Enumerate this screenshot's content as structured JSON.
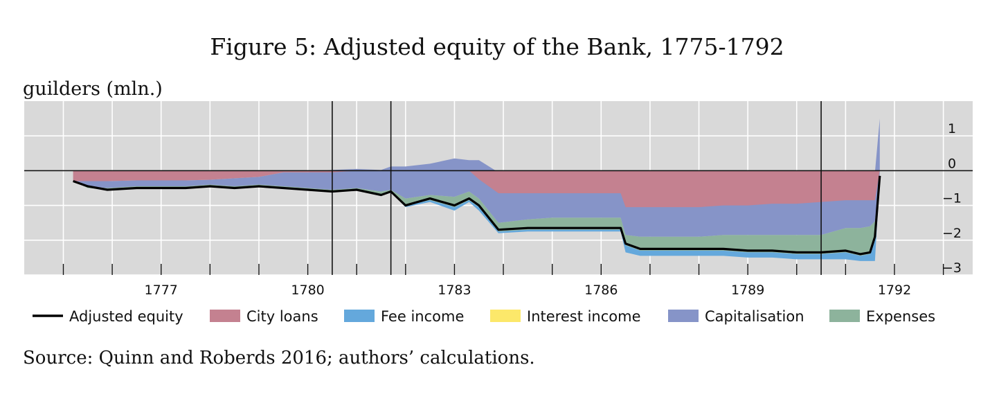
{
  "figure": {
    "title": "Figure 5: Adjusted equity of the Bank, 1775-1792",
    "unit_label": "guilders (mln.)",
    "source": "Source: Quinn and Roberds 2016; authors’ calculations."
  },
  "chart_data": {
    "type": "area",
    "title": "Figure 5: Adjusted equity of the Bank, 1775-1792",
    "ylabel": "guilders (mln.)",
    "xlim": [
      1774.2,
      1793.6
    ],
    "ylim": [
      -3.0,
      2.0
    ],
    "x_ticks": [
      1777,
      1780,
      1783,
      1786,
      1789,
      1792
    ],
    "y_ticks": [
      1,
      0,
      -1,
      -2,
      -3
    ],
    "y_tick_labels": [
      "1",
      "0",
      "−1",
      "−2",
      "−3"
    ],
    "y_axis_side": "right",
    "grid": true,
    "background_color": "#d9d9d9",
    "zero_line": true,
    "vertical_markers": [
      1780.5,
      1781.7,
      1790.5
    ],
    "legend_position": "bottom",
    "legend_order": [
      "Adjusted equity",
      "City loans",
      "Fee income",
      "Interest income",
      "Capitalisation",
      "Expenses"
    ],
    "x": [
      1775.2,
      1775.5,
      1775.9,
      1776.5,
      1777.0,
      1777.5,
      1778.0,
      1778.5,
      1779.0,
      1779.5,
      1780.0,
      1780.5,
      1781.0,
      1781.5,
      1781.7,
      1782.0,
      1782.5,
      1783.0,
      1783.3,
      1783.5,
      1783.9,
      1784.5,
      1785.0,
      1785.5,
      1786.0,
      1786.4,
      1786.5,
      1786.8,
      1787.5,
      1788.0,
      1788.5,
      1789.0,
      1789.5,
      1790.0,
      1790.5,
      1791.0,
      1791.3,
      1791.5,
      1791.6,
      1791.7
    ],
    "series": [
      {
        "name": "City loans",
        "color": "#c48190",
        "values": [
          -0.3,
          -0.25,
          -0.2,
          -0.2,
          -0.2,
          -0.2,
          -0.2,
          -0.15,
          -0.12,
          -0.05,
          -0.1,
          -0.15,
          -0.1,
          -0.1,
          -0.1,
          -0.1,
          -0.1,
          -0.1,
          -0.1,
          -0.3,
          -0.7,
          -0.7,
          -0.7,
          -0.7,
          -0.7,
          -0.7,
          -1.0,
          -1.05,
          -1.05,
          -1.05,
          -1.0,
          -1.0,
          -0.95,
          -0.9,
          -0.9,
          -0.85,
          -0.85,
          -0.85,
          -0.85,
          0.0
        ]
      },
      {
        "name": "Capitalisation",
        "color": "#8694c8",
        "values": [
          0.0,
          0.0,
          0.0,
          0.0,
          0.0,
          0.0,
          0.0,
          0.0,
          0.0,
          0.0,
          0.0,
          0.05,
          0.1,
          0.1,
          0.15,
          0.15,
          0.2,
          0.3,
          0.3,
          0.3,
          0.0,
          0.0,
          0.0,
          0.0,
          0.0,
          0.0,
          0.0,
          0.0,
          0.0,
          0.0,
          0.0,
          0.0,
          0.0,
          0.0,
          0.0,
          0.0,
          0.0,
          0.0,
          0.0,
          1.5
        ]
      },
      {
        "name": "Expenses",
        "color": "#8db39c",
        "values": [
          0.0,
          0.0,
          0.0,
          0.0,
          0.0,
          0.0,
          0.0,
          0.0,
          0.0,
          0.0,
          0.0,
          0.0,
          0.0,
          0.0,
          0.0,
          0.0,
          0.0,
          0.0,
          0.0,
          0.0,
          0.0,
          0.0,
          0.0,
          0.0,
          0.0,
          0.0,
          0.0,
          0.0,
          0.0,
          0.0,
          0.0,
          0.0,
          0.0,
          0.0,
          0.0,
          0.0,
          0.0,
          0.0,
          0.0,
          0.0
        ]
      },
      {
        "name": "Fee income",
        "color": "#64a8dc",
        "values": [
          0.0,
          0.0,
          0.0,
          0.0,
          0.0,
          0.0,
          0.0,
          0.0,
          0.0,
          0.0,
          0.0,
          0.0,
          0.0,
          0.0,
          0.0,
          0.0,
          0.0,
          0.0,
          0.0,
          0.0,
          0.0,
          0.0,
          0.0,
          0.0,
          0.0,
          0.0,
          0.0,
          0.0,
          0.0,
          0.0,
          0.0,
          0.0,
          0.0,
          0.0,
          0.0,
          0.0,
          0.0,
          0.0,
          0.0,
          0.0
        ]
      },
      {
        "name": "Interest income",
        "color": "#fce86a",
        "values": [
          0.0,
          0.0,
          0.0,
          0.0,
          0.0,
          0.0,
          0.0,
          0.0,
          0.0,
          0.0,
          0.0,
          0.0,
          0.0,
          0.0,
          0.0,
          0.0,
          0.0,
          0.0,
          0.0,
          0.0,
          0.0,
          0.0,
          0.0,
          0.0,
          0.0,
          0.0,
          0.0,
          0.0,
          0.0,
          0.0,
          0.0,
          0.0,
          0.0,
          0.0,
          0.0,
          0.0,
          0.0,
          0.0,
          0.0,
          0.0
        ]
      },
      {
        "name": "Adjusted equity",
        "color": "#000000",
        "values": [
          -0.3,
          -0.45,
          -0.55,
          -0.5,
          -0.5,
          -0.5,
          -0.45,
          -0.5,
          -0.45,
          -0.5,
          -0.55,
          -0.6,
          -0.55,
          -0.7,
          -0.6,
          -1.0,
          -0.8,
          -1.0,
          -0.8,
          -1.0,
          -1.7,
          -1.65,
          -1.65,
          -1.65,
          -1.65,
          -1.65,
          -2.1,
          -2.25,
          -2.25,
          -2.25,
          -2.25,
          -2.3,
          -2.3,
          -2.35,
          -2.35,
          -2.3,
          -2.4,
          -2.35,
          -1.9,
          -0.15
        ]
      }
    ],
    "bands": [
      {
        "name": "Expenses",
        "color": "#8db39c",
        "upper": [
          -0.3,
          -0.45,
          -0.5,
          -0.45,
          -0.45,
          -0.45,
          -0.4,
          -0.45,
          -0.4,
          -0.45,
          -0.5,
          -0.55,
          -0.5,
          -0.6,
          -0.55,
          -0.8,
          -0.7,
          -0.75,
          -0.6,
          -0.8,
          -1.5,
          -1.4,
          -1.35,
          -1.35,
          -1.35,
          -1.35,
          -1.85,
          -1.9,
          -1.9,
          -1.9,
          -1.85,
          -1.85,
          -1.85,
          -1.85,
          -1.85,
          -1.65,
          -1.65,
          -1.6,
          -1.45,
          -0.1
        ],
        "lower": [
          -0.3,
          -0.5,
          -0.55,
          -0.5,
          -0.5,
          -0.5,
          -0.45,
          -0.5,
          -0.45,
          -0.5,
          -0.55,
          -0.6,
          -0.55,
          -0.7,
          -0.6,
          -1.0,
          -0.85,
          -1.05,
          -0.85,
          -1.05,
          -1.75,
          -1.7,
          -1.7,
          -1.7,
          -1.7,
          -1.7,
          -2.15,
          -2.3,
          -2.3,
          -2.3,
          -2.3,
          -2.35,
          -2.35,
          -2.4,
          -2.4,
          -2.35,
          -2.45,
          -2.4,
          -1.95,
          -0.2
        ]
      },
      {
        "name": "Fee income",
        "color": "#64a8dc",
        "upper": [
          -0.3,
          -0.5,
          -0.55,
          -0.5,
          -0.5,
          -0.5,
          -0.45,
          -0.5,
          -0.45,
          -0.5,
          -0.55,
          -0.6,
          -0.55,
          -0.7,
          -0.6,
          -1.0,
          -0.85,
          -1.05,
          -0.85,
          -1.05,
          -1.75,
          -1.7,
          -1.7,
          -1.7,
          -1.7,
          -1.7,
          -2.15,
          -2.3,
          -2.3,
          -2.3,
          -2.3,
          -2.35,
          -2.35,
          -2.4,
          -2.4,
          -2.35,
          -2.45,
          -2.4,
          -1.95,
          -0.2
        ],
        "lower": [
          -0.3,
          -0.5,
          -0.55,
          -0.5,
          -0.5,
          -0.5,
          -0.45,
          -0.5,
          -0.45,
          -0.5,
          -0.55,
          -0.6,
          -0.55,
          -0.7,
          -0.6,
          -1.05,
          -0.9,
          -1.15,
          -0.9,
          -1.15,
          -1.8,
          -1.75,
          -1.75,
          -1.75,
          -1.75,
          -1.75,
          -2.35,
          -2.45,
          -2.45,
          -2.45,
          -2.45,
          -2.5,
          -2.5,
          -2.55,
          -2.55,
          -2.55,
          -2.6,
          -2.6,
          -2.6,
          -0.2
        ]
      },
      {
        "name": "Capitalisation",
        "color": "#8694c8",
        "upper": [
          -0.3,
          -0.3,
          -0.3,
          -0.28,
          -0.28,
          -0.28,
          -0.26,
          -0.22,
          -0.18,
          -0.05,
          -0.05,
          0.02,
          0.05,
          0.02,
          0.12,
          0.12,
          0.2,
          0.35,
          0.3,
          0.3,
          -0.05,
          -0.05,
          -0.05,
          -0.05,
          -0.05,
          -0.05,
          -0.05,
          -0.05,
          -0.05,
          -0.05,
          -0.05,
          -0.05,
          -0.05,
          -0.05,
          -0.05,
          -0.05,
          -0.05,
          -0.05,
          -0.05,
          1.5
        ],
        "lower": [
          -0.3,
          -0.45,
          -0.5,
          -0.45,
          -0.45,
          -0.45,
          -0.4,
          -0.45,
          -0.4,
          -0.45,
          -0.5,
          -0.55,
          -0.5,
          -0.6,
          -0.55,
          -0.8,
          -0.7,
          -0.75,
          -0.6,
          -0.8,
          -1.5,
          -1.4,
          -1.35,
          -1.35,
          -1.35,
          -1.35,
          -1.85,
          -1.9,
          -1.9,
          -1.9,
          -1.85,
          -1.85,
          -1.85,
          -1.85,
          -1.85,
          -1.65,
          -1.65,
          -1.6,
          -1.45,
          -0.1
        ]
      },
      {
        "name": "City loans",
        "color": "#c48190",
        "upper": [
          0.0,
          0.0,
          0.0,
          0.0,
          0.0,
          0.0,
          0.0,
          0.0,
          0.0,
          0.0,
          0.0,
          0.0,
          0.0,
          0.0,
          0.0,
          0.0,
          0.0,
          0.0,
          0.0,
          0.0,
          0.0,
          0.0,
          0.0,
          0.0,
          0.0,
          0.0,
          0.0,
          0.0,
          0.0,
          0.0,
          0.0,
          0.0,
          0.0,
          0.0,
          0.0,
          0.0,
          0.0,
          0.0,
          0.0,
          0.0
        ],
        "lower": [
          -0.3,
          -0.3,
          -0.3,
          -0.28,
          -0.28,
          -0.28,
          -0.26,
          -0.22,
          -0.18,
          -0.05,
          -0.05,
          -0.05,
          0.0,
          0.0,
          0.0,
          0.0,
          0.0,
          0.0,
          0.0,
          -0.25,
          -0.65,
          -0.65,
          -0.65,
          -0.65,
          -0.65,
          -0.65,
          -1.05,
          -1.05,
          -1.05,
          -1.05,
          -1.0,
          -1.0,
          -0.95,
          -0.95,
          -0.9,
          -0.85,
          -0.85,
          -0.85,
          -0.85,
          0.0
        ]
      }
    ]
  }
}
